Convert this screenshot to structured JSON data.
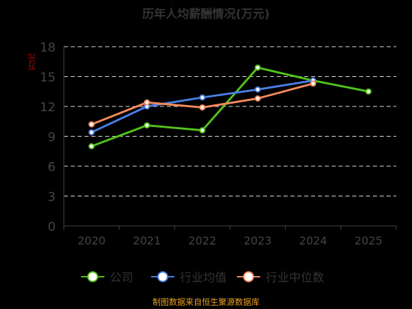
{
  "chart_data": {
    "type": "line",
    "title": "历年人均薪酬情况(万元)",
    "ylabel": "万元",
    "categories": [
      "2020",
      "2021",
      "2022",
      "2023",
      "2024",
      "2025"
    ],
    "ylim": [
      0,
      18
    ],
    "yticks": [
      0,
      3,
      6,
      9,
      12,
      15,
      18
    ],
    "grid": true,
    "legend": "bottom",
    "series": [
      {
        "name": "公司",
        "color": "#52c41a",
        "values": [
          8.0,
          10.1,
          9.6,
          15.9,
          14.6,
          13.5
        ]
      },
      {
        "name": "行业均值",
        "color": "#4a7fe8",
        "values": [
          9.4,
          12.0,
          12.9,
          13.7,
          14.6,
          null
        ]
      },
      {
        "name": "行业中位数",
        "color": "#f5895a",
        "values": [
          10.2,
          12.4,
          11.9,
          12.8,
          14.3,
          null
        ]
      }
    ]
  },
  "source": "制图数据来自恒生聚源数据库"
}
